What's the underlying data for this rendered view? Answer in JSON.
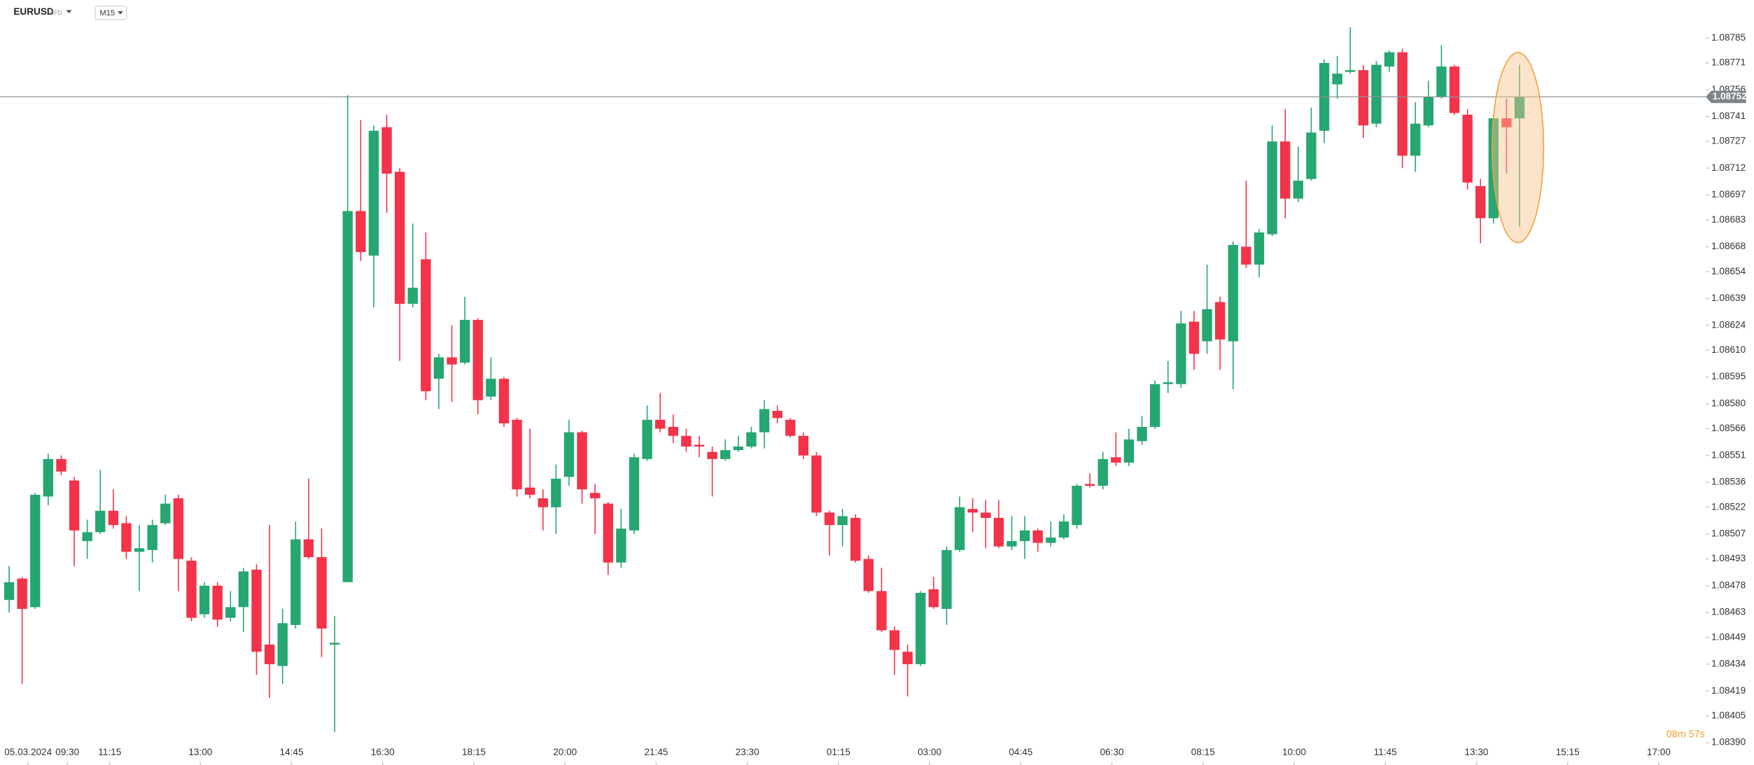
{
  "chart_data": {
    "type": "candlestick",
    "symbol": "EURUSD",
    "instrument_type": "CFD",
    "timeframe": "M15",
    "countdown": "08m 57s",
    "current_price": 1.08752,
    "up_color": "#26a671",
    "down_color": "#f2334a",
    "open": [
      1.0847,
      1.08482,
      1.08466,
      1.08528,
      1.08549,
      1.08537,
      1.08503,
      1.08508,
      1.0852,
      1.08513,
      1.08497,
      1.08498,
      1.08513,
      1.08527,
      1.08492,
      1.08462,
      1.08478,
      1.0846,
      1.08466,
      1.08487,
      1.08445,
      1.08433,
      1.08456,
      1.08504,
      1.08494,
      1.08445,
      1.0848,
      1.08688,
      1.08663,
      1.08735,
      1.0871,
      1.08636,
      1.08661,
      1.08594,
      1.08606,
      1.08603,
      1.08627,
      1.08584,
      1.08594,
      1.08571,
      1.08533,
      1.08527,
      1.08522,
      1.08539,
      1.08564,
      1.0853,
      1.08524,
      1.08491,
      1.08509,
      1.08549,
      1.08571,
      1.08567,
      1.08562,
      1.08557,
      1.08553,
      1.08549,
      1.08554,
      1.08556,
      1.08564,
      1.08576,
      1.08571,
      1.08562,
      1.08551,
      1.08519,
      1.08512,
      1.08516,
      1.08493,
      1.08475,
      1.08453,
      1.08441,
      1.08434,
      1.08476,
      1.08465,
      1.08498,
      1.08521,
      1.08519,
      1.08516,
      1.085,
      1.08503,
      1.08509,
      1.08502,
      1.08505,
      1.08512,
      1.08535,
      1.08534,
      1.0855,
      1.08547,
      1.08559,
      1.08567,
      1.08591,
      1.08591,
      1.08626,
      1.08615,
      1.08637,
      1.08615,
      1.08668,
      1.08658,
      1.08675,
      1.08727,
      1.08695,
      1.08706,
      1.08733,
      1.08759,
      1.08766,
      1.08767,
      1.08737,
      1.08769,
      1.08777,
      1.08719,
      1.08736,
      1.08752,
      1.08769,
      1.08742,
      1.08702,
      1.08684,
      1.0874,
      1.0874
    ],
    "high": [
      1.08489,
      1.08483,
      1.0853,
      1.08552,
      1.08551,
      1.08539,
      1.08515,
      1.08543,
      1.08532,
      1.08517,
      1.08512,
      1.08515,
      1.08529,
      1.08529,
      1.08494,
      1.0848,
      1.0848,
      1.08475,
      1.08488,
      1.0849,
      1.08512,
      1.08465,
      1.08514,
      1.08538,
      1.0851,
      1.08461,
      1.08753,
      1.08739,
      1.08736,
      1.08742,
      1.08712,
      1.08681,
      1.08676,
      1.08608,
      1.08624,
      1.0864,
      1.08628,
      1.08606,
      1.08595,
      1.08572,
      1.08566,
      1.08532,
      1.08546,
      1.08571,
      1.08565,
      1.08535,
      1.08525,
      1.08521,
      1.08552,
      1.08579,
      1.08586,
      1.08574,
      1.08566,
      1.08562,
      1.08556,
      1.0856,
      1.08562,
      1.08567,
      1.08582,
      1.08579,
      1.08572,
      1.08564,
      1.08553,
      1.0852,
      1.08521,
      1.08518,
      1.08495,
      1.08488,
      1.08455,
      1.08445,
      1.08475,
      1.08483,
      1.085,
      1.08528,
      1.08527,
      1.08526,
      1.08526,
      1.08517,
      1.08517,
      1.0851,
      1.08514,
      1.08518,
      1.08535,
      1.08541,
      1.08553,
      1.08564,
      1.08566,
      1.08573,
      1.08593,
      1.08604,
      1.08632,
      1.08632,
      1.08658,
      1.0864,
      1.08671,
      1.08705,
      1.08678,
      1.08736,
      1.08745,
      1.08724,
      1.08746,
      1.08773,
      1.08775,
      1.08791,
      1.0877,
      1.08772,
      1.08778,
      1.08779,
      1.08749,
      1.08761,
      1.08781,
      1.0877,
      1.08745,
      1.08706,
      1.08742,
      1.08751,
      1.0877
    ],
    "low": [
      1.08463,
      1.08423,
      1.08465,
      1.08523,
      1.0854,
      1.08489,
      1.08493,
      1.08507,
      1.0851,
      1.08493,
      1.08475,
      1.08491,
      1.08512,
      1.08475,
      1.08458,
      1.0846,
      1.08455,
      1.08458,
      1.08452,
      1.08428,
      1.08415,
      1.08423,
      1.08454,
      1.08493,
      1.08438,
      1.08396,
      1.0848,
      1.0866,
      1.08634,
      1.08687,
      1.08604,
      1.08634,
      1.08582,
      1.08577,
      1.08581,
      1.08602,
      1.08574,
      1.08582,
      1.08567,
      1.08528,
      1.08527,
      1.08509,
      1.08507,
      1.08534,
      1.08524,
      1.08507,
      1.08484,
      1.08488,
      1.08507,
      1.08548,
      1.08564,
      1.08558,
      1.08553,
      1.0855,
      1.08528,
      1.08548,
      1.08553,
      1.08555,
      1.08555,
      1.08569,
      1.08561,
      1.08549,
      1.08517,
      1.08495,
      1.085,
      1.08491,
      1.08474,
      1.08452,
      1.08428,
      1.08416,
      1.08433,
      1.08465,
      1.08456,
      1.08497,
      1.08508,
      1.08499,
      1.08499,
      1.08498,
      1.08493,
      1.08497,
      1.085,
      1.08504,
      1.0851,
      1.08533,
      1.08532,
      1.08545,
      1.08545,
      1.08557,
      1.08566,
      1.08586,
      1.08589,
      1.08599,
      1.08608,
      1.08599,
      1.08588,
      1.08656,
      1.08651,
      1.08674,
      1.08684,
      1.08693,
      1.08705,
      1.08726,
      1.08751,
      1.08765,
      1.08729,
      1.08735,
      1.08766,
      1.08712,
      1.0871,
      1.08735,
      1.08751,
      1.08742,
      1.087,
      1.0867,
      1.08681,
      1.08709,
      1.08679
    ],
    "close": [
      1.0848,
      1.08465,
      1.08529,
      1.08549,
      1.08542,
      1.08509,
      1.08508,
      1.0852,
      1.08512,
      1.08497,
      1.08499,
      1.08512,
      1.08524,
      1.08493,
      1.0846,
      1.08478,
      1.08459,
      1.08466,
      1.08486,
      1.08441,
      1.08434,
      1.08457,
      1.08504,
      1.08494,
      1.08454,
      1.08446,
      1.08688,
      1.08665,
      1.08733,
      1.08709,
      1.08636,
      1.08645,
      1.08587,
      1.08606,
      1.08602,
      1.08627,
      1.08582,
      1.08594,
      1.08569,
      1.08532,
      1.08529,
      1.08522,
      1.08538,
      1.08564,
      1.08532,
      1.08527,
      1.08491,
      1.0851,
      1.0855,
      1.08571,
      1.08566,
      1.08562,
      1.08556,
      1.08556,
      1.08549,
      1.08554,
      1.08556,
      1.08564,
      1.08577,
      1.08572,
      1.08562,
      1.08551,
      1.08519,
      1.08512,
      1.08517,
      1.08492,
      1.08475,
      1.08453,
      1.08442,
      1.08434,
      1.08474,
      1.08466,
      1.08498,
      1.08522,
      1.08519,
      1.08516,
      1.085,
      1.08503,
      1.08509,
      1.08502,
      1.08505,
      1.08514,
      1.08534,
      1.08534,
      1.08549,
      1.08547,
      1.0856,
      1.08567,
      1.08591,
      1.08592,
      1.08625,
      1.08608,
      1.08633,
      1.08616,
      1.08669,
      1.08658,
      1.08676,
      1.08727,
      1.08695,
      1.08705,
      1.08732,
      1.08771,
      1.08765,
      1.08767,
      1.08736,
      1.0877,
      1.08777,
      1.08719,
      1.08737,
      1.08752,
      1.08769,
      1.08743,
      1.08704,
      1.08684,
      1.0874,
      1.08735,
      1.08752
    ],
    "ylim": [
      1.083775,
      1.088063
    ],
    "yticks": [
      1.08785,
      1.08771,
      1.08756,
      1.08741,
      1.08727,
      1.08712,
      1.08697,
      1.08683,
      1.08668,
      1.08654,
      1.08639,
      1.08624,
      {
        "value": 1.0861,
        "label": "1.08610"
      },
      1.08595,
      {
        "value": 1.0858,
        "label": "1.08580"
      },
      1.08566,
      1.08551,
      1.08536,
      1.08522,
      1.08507,
      1.08493,
      1.08478,
      1.08463,
      1.08449,
      1.08434,
      1.08419,
      1.08405,
      {
        "value": 1.0839,
        "label": "1.08390"
      }
    ],
    "xlim": [
      -0.69,
      130.3
    ],
    "xticks": [
      {
        "value": 1.46,
        "label": "05.03.2024"
      },
      {
        "value": 4.47,
        "label": "09:30"
      },
      {
        "value": 7.73,
        "label": "11:15"
      },
      {
        "value": 14.69,
        "label": "13:00"
      },
      {
        "value": 21.69,
        "label": "14:45"
      },
      {
        "value": 28.69,
        "label": "16:30"
      },
      {
        "value": 35.69,
        "label": "18:15"
      },
      {
        "value": 42.69,
        "label": "20:00"
      },
      {
        "value": 49.69,
        "label": "21:45"
      },
      {
        "value": 56.69,
        "label": "23:30"
      },
      {
        "value": 63.69,
        "label": "01:15"
      },
      {
        "value": 70.69,
        "label": "03:00"
      },
      {
        "value": 77.69,
        "label": "04:45"
      },
      {
        "value": 84.69,
        "label": "06:30"
      },
      {
        "value": 91.69,
        "label": "08:15"
      },
      {
        "value": 98.69,
        "label": "10:00"
      },
      {
        "value": 105.69,
        "label": "11:45"
      },
      {
        "value": 112.69,
        "label": "13:30"
      },
      {
        "value": 119.69,
        "label": "15:15"
      },
      {
        "value": 126.69,
        "label": "17:00"
      }
    ]
  }
}
